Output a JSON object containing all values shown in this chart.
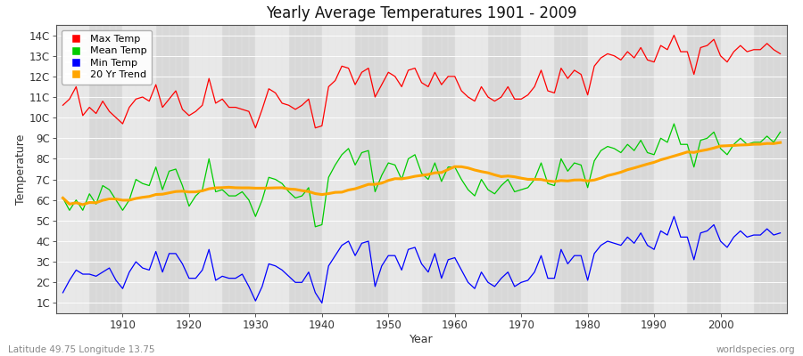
{
  "title": "Yearly Average Temperatures 1901 - 2009",
  "xlabel": "Year",
  "ylabel": "Temperature",
  "lat_lon_text": "Latitude 49.75 Longitude 13.75",
  "watermark": "worldspecies.org",
  "years_start": 1901,
  "years_end": 2009,
  "background_color": "#ffffff",
  "plot_bg_color": "#d8d8d8",
  "grid_color": "#ffffff",
  "alt_band_color": "#e8e8e8",
  "legend_labels": [
    "Max Temp",
    "Mean Temp",
    "Min Temp",
    "20 Yr Trend"
  ],
  "legend_colors": [
    "#ff0000",
    "#00cc00",
    "#0000ff",
    "#ffa500"
  ],
  "max_temps": [
    10.6,
    10.9,
    11.5,
    10.1,
    10.5,
    10.2,
    10.8,
    10.3,
    10.0,
    9.7,
    10.5,
    10.9,
    11.0,
    10.8,
    11.6,
    10.5,
    10.9,
    11.3,
    10.4,
    10.1,
    10.3,
    10.6,
    11.9,
    10.7,
    10.9,
    10.5,
    10.5,
    10.4,
    10.3,
    9.5,
    10.4,
    11.4,
    11.2,
    10.7,
    10.6,
    10.4,
    10.6,
    10.9,
    9.5,
    9.6,
    11.5,
    11.8,
    12.5,
    12.4,
    11.6,
    12.2,
    12.4,
    11.0,
    11.6,
    12.2,
    12.0,
    11.5,
    12.3,
    12.4,
    11.7,
    11.5,
    12.2,
    11.6,
    12.0,
    12.0,
    11.3,
    11.0,
    10.8,
    11.5,
    11.0,
    10.8,
    11.0,
    11.5,
    10.9,
    10.9,
    11.1,
    11.5,
    12.3,
    11.3,
    11.2,
    12.4,
    11.9,
    12.3,
    12.1,
    11.1,
    12.5,
    12.9,
    13.1,
    13.0,
    12.8,
    13.2,
    12.9,
    13.4,
    12.8,
    12.7,
    13.5,
    13.3,
    14.0,
    13.2,
    13.2,
    12.1,
    13.4,
    13.5,
    13.8,
    13.0,
    12.7,
    13.2,
    13.5,
    13.2,
    13.3,
    13.3,
    13.6,
    13.3,
    13.1
  ],
  "mean_temps": [
    6.1,
    5.5,
    6.0,
    5.5,
    6.3,
    5.8,
    6.7,
    6.5,
    6.0,
    5.5,
    6.0,
    7.0,
    6.8,
    6.7,
    7.6,
    6.5,
    7.4,
    7.5,
    6.7,
    5.7,
    6.2,
    6.5,
    8.0,
    6.4,
    6.5,
    6.2,
    6.2,
    6.4,
    6.0,
    5.2,
    6.0,
    7.1,
    7.0,
    6.8,
    6.4,
    6.1,
    6.2,
    6.6,
    4.7,
    4.8,
    7.1,
    7.7,
    8.2,
    8.5,
    7.7,
    8.3,
    8.4,
    6.4,
    7.2,
    7.8,
    7.7,
    7.0,
    8.0,
    8.2,
    7.3,
    7.0,
    7.8,
    6.9,
    7.6,
    7.6,
    7.0,
    6.5,
    6.2,
    7.0,
    6.5,
    6.3,
    6.7,
    7.0,
    6.4,
    6.5,
    6.6,
    7.0,
    7.8,
    6.8,
    6.7,
    8.0,
    7.4,
    7.8,
    7.7,
    6.6,
    7.9,
    8.4,
    8.6,
    8.5,
    8.3,
    8.7,
    8.4,
    8.9,
    8.3,
    8.2,
    9.0,
    8.8,
    9.7,
    8.7,
    8.7,
    7.6,
    8.9,
    9.0,
    9.3,
    8.5,
    8.2,
    8.7,
    9.0,
    8.7,
    8.8,
    8.8,
    9.1,
    8.8,
    9.3
  ],
  "min_temps": [
    1.5,
    2.1,
    2.6,
    2.4,
    2.4,
    2.3,
    2.5,
    2.7,
    2.1,
    1.7,
    2.5,
    3.0,
    2.7,
    2.6,
    3.5,
    2.5,
    3.4,
    3.4,
    2.9,
    2.2,
    2.2,
    2.6,
    3.6,
    2.1,
    2.3,
    2.2,
    2.2,
    2.4,
    1.8,
    1.1,
    1.8,
    2.9,
    2.8,
    2.6,
    2.3,
    2.0,
    2.0,
    2.5,
    1.5,
    1.0,
    2.8,
    3.3,
    3.8,
    4.0,
    3.3,
    3.9,
    4.0,
    1.8,
    2.8,
    3.3,
    3.3,
    2.6,
    3.6,
    3.7,
    2.9,
    2.5,
    3.4,
    2.2,
    3.1,
    3.2,
    2.6,
    2.0,
    1.7,
    2.5,
    2.0,
    1.8,
    2.2,
    2.5,
    1.8,
    2.0,
    2.1,
    2.5,
    3.3,
    2.2,
    2.2,
    3.6,
    2.9,
    3.3,
    3.3,
    2.1,
    3.4,
    3.8,
    4.0,
    3.9,
    3.8,
    4.2,
    3.9,
    4.4,
    3.8,
    3.6,
    4.5,
    4.3,
    5.2,
    4.2,
    4.2,
    3.1,
    4.4,
    4.5,
    4.8,
    4.0,
    3.7,
    4.2,
    4.5,
    4.2,
    4.3,
    4.3,
    4.6,
    4.3,
    4.4
  ],
  "yticks": [
    1,
    2,
    3,
    4,
    5,
    6,
    7,
    8,
    9,
    10,
    11,
    12,
    13,
    14
  ],
  "xticks": [
    1910,
    1920,
    1930,
    1940,
    1950,
    1960,
    1970,
    1980,
    1990,
    2000
  ],
  "xlim": [
    1900,
    2010
  ],
  "ylim": [
    0.5,
    14.5
  ],
  "figsize": [
    9.0,
    4.0
  ],
  "dpi": 100
}
